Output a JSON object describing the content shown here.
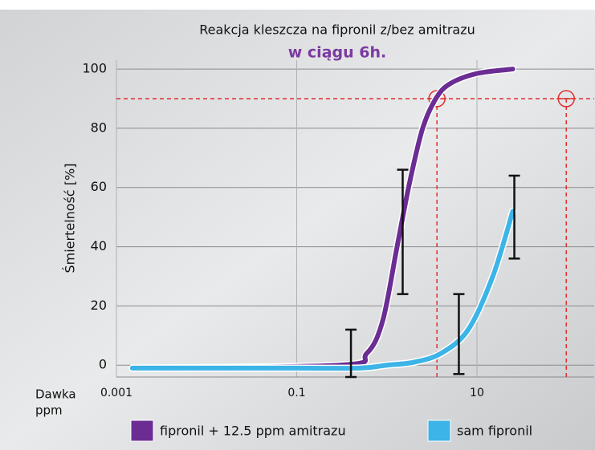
{
  "chart_data": {
    "type": "line",
    "title": "Reakcja kleszcza na fipronil z/bez amitrazu",
    "subtitle": "w ciągu 6h.",
    "ylabel": "Śmiertelność [%]",
    "xlabel_lines": [
      "Dawka",
      "ppm"
    ],
    "xscale": "log",
    "xlim": [
      0.001,
      200
    ],
    "xticks": [
      {
        "value": 0.001,
        "label": "0.001"
      },
      0.1,
      10
    ],
    "ylim": [
      -4,
      103
    ],
    "yticks": [
      0,
      20,
      40,
      60,
      80,
      100
    ],
    "grid": true,
    "series": [
      {
        "name": "fipronil + 12.5 ppm amitrazu",
        "color": "#6b2d93",
        "x": [
          0.0015,
          0.3,
          0.6,
          0.9,
          1.3,
          1.8,
          2.5,
          3.5,
          5,
          10,
          25
        ],
        "values": [
          -1,
          0,
          4,
          15,
          40,
          62,
          80,
          90,
          95,
          98.5,
          100
        ]
      },
      {
        "name": "sam fipronil",
        "color": "#3cb4e7",
        "x": [
          0.0015,
          0.1,
          0.5,
          1,
          2,
          4,
          8,
          15,
          25
        ],
        "values": [
          -1,
          -1,
          -1,
          0,
          1,
          4,
          12,
          30,
          52
        ]
      }
    ],
    "error_bars": [
      {
        "x": 0.4,
        "value": 4,
        "error": 8
      },
      {
        "x": 1.5,
        "value": 45,
        "error": 21
      },
      {
        "x": 6.3,
        "value": 10.5,
        "error": 13.5
      },
      {
        "x": 26,
        "value": 50,
        "error": 14
      }
    ],
    "reference": {
      "color": "#e03030",
      "y": 90,
      "x": [
        3.6,
        98
      ]
    }
  }
}
